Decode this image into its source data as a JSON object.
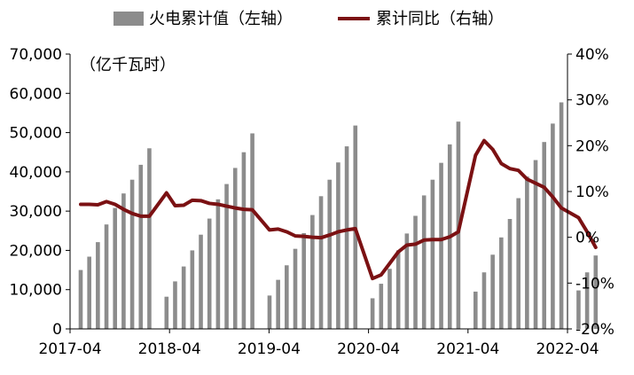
{
  "chart_data": {
    "type": "bar",
    "title": "",
    "unit_label": "（亿千瓦时）",
    "colors": {
      "bars": "#8c8c8c",
      "line": "#7b1113",
      "axis": "#000000"
    },
    "legend": {
      "placement": "top",
      "items": [
        {
          "label": "火电累计值（左轴）",
          "kind": "bar"
        },
        {
          "label": "累计同比（右轴）",
          "kind": "line"
        }
      ]
    },
    "x": [
      "2017-04",
      "2017-05",
      "2017-06",
      "2017-07",
      "2017-08",
      "2017-09",
      "2017-10",
      "2017-11",
      "2017-12",
      "2018-01",
      "2018-02",
      "2018-03",
      "2018-04",
      "2018-05",
      "2018-06",
      "2018-07",
      "2018-08",
      "2018-09",
      "2018-10",
      "2018-11",
      "2018-12",
      "2019-01",
      "2019-02",
      "2019-03",
      "2019-04",
      "2019-05",
      "2019-06",
      "2019-07",
      "2019-08",
      "2019-09",
      "2019-10",
      "2019-11",
      "2019-12",
      "2020-01",
      "2020-02",
      "2020-03",
      "2020-04",
      "2020-05",
      "2020-06",
      "2020-07",
      "2020-08",
      "2020-09",
      "2020-10",
      "2020-11",
      "2020-12",
      "2021-01",
      "2021-02",
      "2021-03",
      "2021-04",
      "2021-05",
      "2021-06",
      "2021-07",
      "2021-08",
      "2021-09",
      "2021-10",
      "2021-11",
      "2021-12",
      "2022-01",
      "2022-02",
      "2022-03",
      "2022-04"
    ],
    "x_tick_labels": [
      "2017-04",
      "2018-04",
      "2019-04",
      "2020-04",
      "2021-04",
      "2022-04"
    ],
    "series": [
      {
        "name": "火电累计值（左轴）",
        "axis": "left",
        "kind": "bar",
        "values": [
          15000,
          18400,
          22100,
          26600,
          30800,
          34500,
          38000,
          41800,
          46000,
          null,
          8200,
          12100,
          15900,
          20000,
          24000,
          28100,
          33000,
          36900,
          41000,
          45000,
          49800,
          null,
          8500,
          12500,
          16200,
          20400,
          24400,
          29000,
          33800,
          38000,
          42400,
          46500,
          51800,
          null,
          7800,
          11500,
          15300,
          20000,
          24300,
          28800,
          34000,
          38000,
          42300,
          47000,
          52800,
          null,
          9500,
          14400,
          18900,
          23300,
          28000,
          33300,
          38800,
          43000,
          47600,
          52300,
          57700,
          null,
          9800,
          14400,
          18700
        ]
      },
      {
        "name": "累计同比（右轴）",
        "axis": "right",
        "kind": "line",
        "values": [
          7.2,
          7.2,
          7.1,
          7.8,
          7.2,
          6.1,
          5.2,
          4.6,
          4.6,
          null,
          9.7,
          6.9,
          7.0,
          8.1,
          8.0,
          7.4,
          7.2,
          6.8,
          6.4,
          6.1,
          6.0,
          null,
          1.6,
          1.8,
          1.2,
          0.3,
          0.2,
          0.0,
          -0.1,
          0.5,
          1.2,
          1.6,
          1.9,
          null,
          -9.0,
          -8.2,
          -5.7,
          -3.2,
          -1.7,
          -1.5,
          -0.6,
          -0.5,
          -0.5,
          0.1,
          1.2,
          null,
          17.9,
          21.1,
          19.2,
          16.1,
          15.0,
          14.6,
          12.7,
          11.8,
          10.9,
          8.8,
          6.4,
          null,
          4.3,
          1.2,
          -2.2
        ]
      }
    ],
    "y_left": {
      "ylim": [
        0,
        70000
      ],
      "ticks": [
        "0",
        "10,000",
        "20,000",
        "30,000",
        "40,000",
        "50,000",
        "60,000",
        "70,000"
      ]
    },
    "y_right": {
      "ylim": [
        -20,
        40
      ],
      "ticks": [
        "-20%",
        "-10%",
        "0%",
        "10%",
        "20%",
        "30%",
        "40%"
      ]
    },
    "grid": false
  }
}
